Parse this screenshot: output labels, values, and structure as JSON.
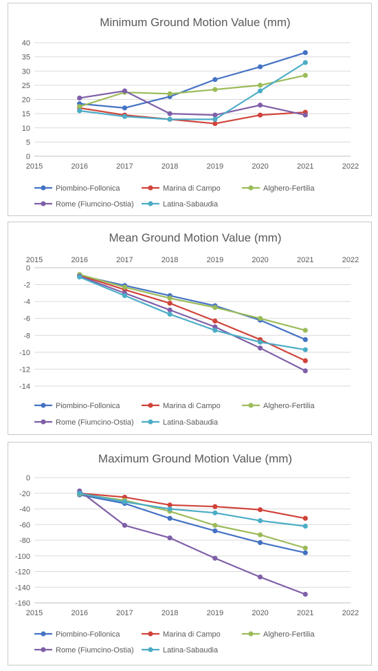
{
  "colors": {
    "Piombino-Follonica": "#4472c4",
    "Marina di Campo": "#d0433a",
    "Alghero-Fertilia": "#9bbb59",
    "Rome (Fiumcino-Ostia)": "#7f5fa8",
    "Latina-Sabaudia": "#4bacc6",
    "grid": "#d9d9d9",
    "text": "#595959"
  },
  "chart_data": [
    {
      "type": "scatter",
      "title": "Minimum Ground Motion Value (mm)",
      "xlabel": "",
      "ylabel": "",
      "x_axis_position": "bottom",
      "xlim": [
        2015,
        2022
      ],
      "ylim": [
        0,
        40
      ],
      "xticks": [
        2015,
        2016,
        2017,
        2018,
        2019,
        2020,
        2021,
        2022
      ],
      "yticks": [
        0,
        5,
        10,
        15,
        20,
        25,
        30,
        35,
        40
      ],
      "grid": true,
      "legend_position": "bottom",
      "x": [
        2016,
        2017,
        2018,
        2019,
        2020,
        2021
      ],
      "series": [
        {
          "name": "Piombino-Follonica",
          "values": [
            18.5,
            17,
            21,
            27,
            31.5,
            36.5
          ]
        },
        {
          "name": "Marina di Campo",
          "values": [
            17,
            14.5,
            13,
            11.5,
            14.5,
            15.5
          ]
        },
        {
          "name": "Alghero-Fertilia",
          "values": [
            17.5,
            22.5,
            22,
            23.5,
            25,
            28.5
          ]
        },
        {
          "name": "Rome (Fiumcino-Ostia)",
          "values": [
            20.5,
            23,
            15,
            14.5,
            18,
            14.5
          ]
        },
        {
          "name": "Latina-Sabaudia",
          "values": [
            16,
            14,
            13,
            13,
            23,
            33
          ]
        }
      ]
    },
    {
      "type": "scatter",
      "title": "Mean Ground Motion Value (mm)",
      "xlabel": "",
      "ylabel": "",
      "x_axis_position": "top",
      "xlim": [
        2015,
        2022
      ],
      "ylim": [
        -14,
        0
      ],
      "xticks": [
        2015,
        2016,
        2017,
        2018,
        2019,
        2020,
        2021,
        2022
      ],
      "yticks": [
        0,
        -2,
        -4,
        -6,
        -8,
        -10,
        -12,
        -14
      ],
      "grid": true,
      "legend_position": "bottom",
      "x": [
        2016,
        2017,
        2018,
        2019,
        2020,
        2021
      ],
      "series": [
        {
          "name": "Piombino-Follonica",
          "values": [
            -0.9,
            -2.1,
            -3.3,
            -4.5,
            -6.2,
            -8.5
          ]
        },
        {
          "name": "Marina di Campo",
          "values": [
            -0.9,
            -2.6,
            -4.2,
            -6.3,
            -8.5,
            -11
          ]
        },
        {
          "name": "Alghero-Fertilia",
          "values": [
            -0.8,
            -2.3,
            -3.6,
            -4.7,
            -6,
            -7.4
          ]
        },
        {
          "name": "Rome (Fiumcino-Ostia)",
          "values": [
            -1,
            -3,
            -5,
            -7,
            -9.5,
            -12.2
          ]
        },
        {
          "name": "Latina-Sabaudia",
          "values": [
            -1.1,
            -3.3,
            -5.5,
            -7.4,
            -8.8,
            -9.7
          ]
        }
      ]
    },
    {
      "type": "scatter",
      "title": "Maximum Ground Motion Value (mm)",
      "xlabel": "",
      "ylabel": "",
      "x_axis_position": "bottom",
      "xlim": [
        2015,
        2022
      ],
      "ylim": [
        -160,
        0
      ],
      "xticks": [
        2015,
        2016,
        2017,
        2018,
        2019,
        2020,
        2021,
        2022
      ],
      "yticks": [
        0,
        -20,
        -40,
        -60,
        -80,
        -100,
        -120,
        -140,
        -160
      ],
      "grid": true,
      "legend_position": "bottom",
      "x": [
        2016,
        2017,
        2018,
        2019,
        2020,
        2021
      ],
      "series": [
        {
          "name": "Piombino-Follonica",
          "values": [
            -22,
            -33,
            -52,
            -68,
            -83,
            -96
          ]
        },
        {
          "name": "Marina di Campo",
          "values": [
            -20,
            -25,
            -35,
            -37,
            -41,
            -52
          ]
        },
        {
          "name": "Alghero-Fertilia",
          "values": [
            -21,
            -29,
            -43,
            -61,
            -73,
            -90
          ]
        },
        {
          "name": "Rome (Fiumcino-Ostia)",
          "values": [
            -17,
            -61,
            -77,
            -103,
            -127,
            -149
          ]
        },
        {
          "name": "Latina-Sabaudia",
          "values": [
            -20,
            -31,
            -40,
            -45,
            -55,
            -62
          ]
        }
      ]
    }
  ]
}
